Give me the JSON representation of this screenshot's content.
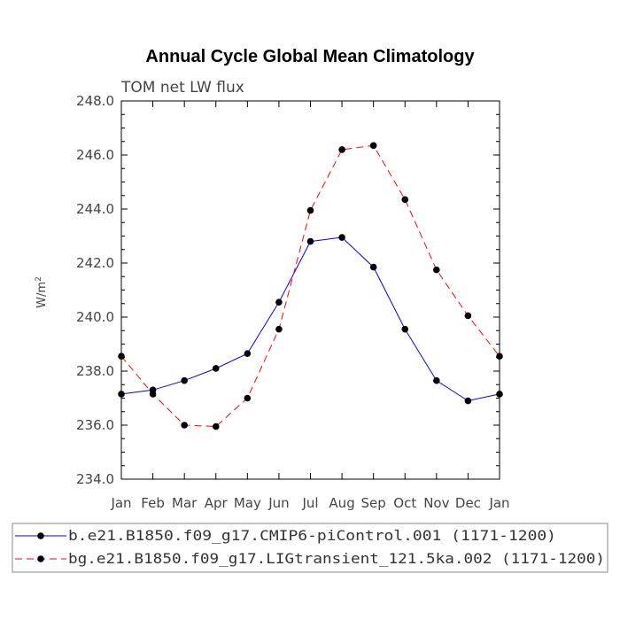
{
  "chart_data": {
    "type": "line",
    "title": "Annual Cycle Global Mean Climatology",
    "subtitle": "TOM net LW flux",
    "ylabel": "W/m",
    "ylabel_sup": "2",
    "xlabel": "",
    "categories": [
      "Jan",
      "Feb",
      "Mar",
      "Apr",
      "May",
      "Jun",
      "Jul",
      "Aug",
      "Sep",
      "Oct",
      "Nov",
      "Dec",
      "Jan"
    ],
    "ylim": [
      234.0,
      248.0
    ],
    "yticks": [
      "234.0",
      "236.0",
      "238.0",
      "240.0",
      "242.0",
      "244.0",
      "246.0",
      "248.0"
    ],
    "series": [
      {
        "name": "b.e21.B1850.f09_g17.CMIP6-piControl.001 (1171-1200)",
        "color": "#0000ff",
        "dash": "solid",
        "values": [
          237.15,
          237.3,
          237.65,
          238.1,
          238.65,
          240.55,
          242.8,
          242.95,
          241.85,
          239.55,
          237.65,
          236.9,
          237.15
        ]
      },
      {
        "name": "bg.e21.B1850.f09_g17.LIGtransient_121.5ka.002 (1171-1200)",
        "color": "#ff0000",
        "dash": "dashed",
        "values": [
          238.55,
          237.15,
          236.0,
          235.95,
          237.0,
          239.55,
          243.95,
          246.2,
          246.35,
          244.35,
          241.75,
          240.05,
          238.55
        ]
      }
    ],
    "grid": false,
    "legend_position": "bottom"
  }
}
